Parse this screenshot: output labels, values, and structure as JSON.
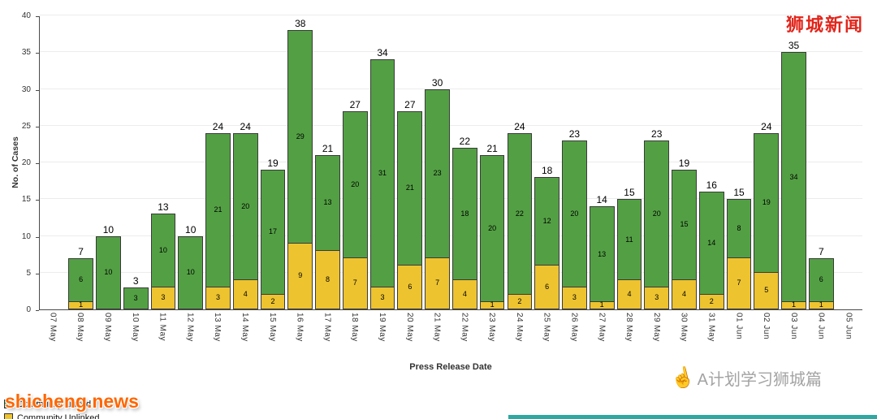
{
  "watermarks": {
    "top_right": "狮城新闻",
    "bottom_left": "shicheng.news",
    "bottom_right": "A计划学习狮城篇"
  },
  "chart_data": {
    "type": "bar",
    "stacked": true,
    "title": "",
    "xlabel": "Press Release Date",
    "ylabel": "No. of Cases",
    "ylim": [
      0,
      40
    ],
    "yticks": [
      0,
      5,
      10,
      15,
      20,
      25,
      30,
      35,
      40
    ],
    "grid": true,
    "legend_position": "bottom-left",
    "x": [
      "07 May",
      "08 May",
      "09 May",
      "10 May",
      "11 May",
      "12 May",
      "13 May",
      "14 May",
      "15 May",
      "16 May",
      "17 May",
      "18 May",
      "19 May",
      "20 May",
      "21 May",
      "22 May",
      "23 May",
      "24 May",
      "25 May",
      "26 May",
      "27 May",
      "28 May",
      "29 May",
      "30 May",
      "31 May",
      "01 Jun",
      "02 Jun",
      "03 Jun",
      "04 Jun",
      "05 Jun"
    ],
    "series": [
      {
        "name": "Community Linked",
        "color": "#53A044",
        "values": [
          null,
          6,
          10,
          3,
          10,
          10,
          21,
          20,
          17,
          29,
          13,
          20,
          31,
          21,
          23,
          18,
          20,
          22,
          12,
          20,
          13,
          11,
          20,
          15,
          14,
          8,
          19,
          34,
          6,
          null
        ]
      },
      {
        "name": "Community Unlinked",
        "color": "#EDC32F",
        "values": [
          null,
          1,
          0,
          0,
          3,
          0,
          3,
          4,
          2,
          9,
          8,
          7,
          3,
          6,
          7,
          4,
          1,
          2,
          6,
          3,
          1,
          4,
          3,
          4,
          2,
          7,
          5,
          1,
          1,
          null
        ]
      }
    ],
    "totals": [
      null,
      7,
      10,
      3,
      13,
      10,
      24,
      24,
      19,
      38,
      21,
      27,
      34,
      27,
      30,
      22,
      21,
      24,
      18,
      23,
      14,
      15,
      23,
      19,
      16,
      15,
      24,
      35,
      7,
      null
    ],
    "legend": [
      {
        "label": "Community Linked",
        "color": "#53A044"
      },
      {
        "label": "Community Unlinked",
        "color": "#EDC32F"
      }
    ]
  }
}
